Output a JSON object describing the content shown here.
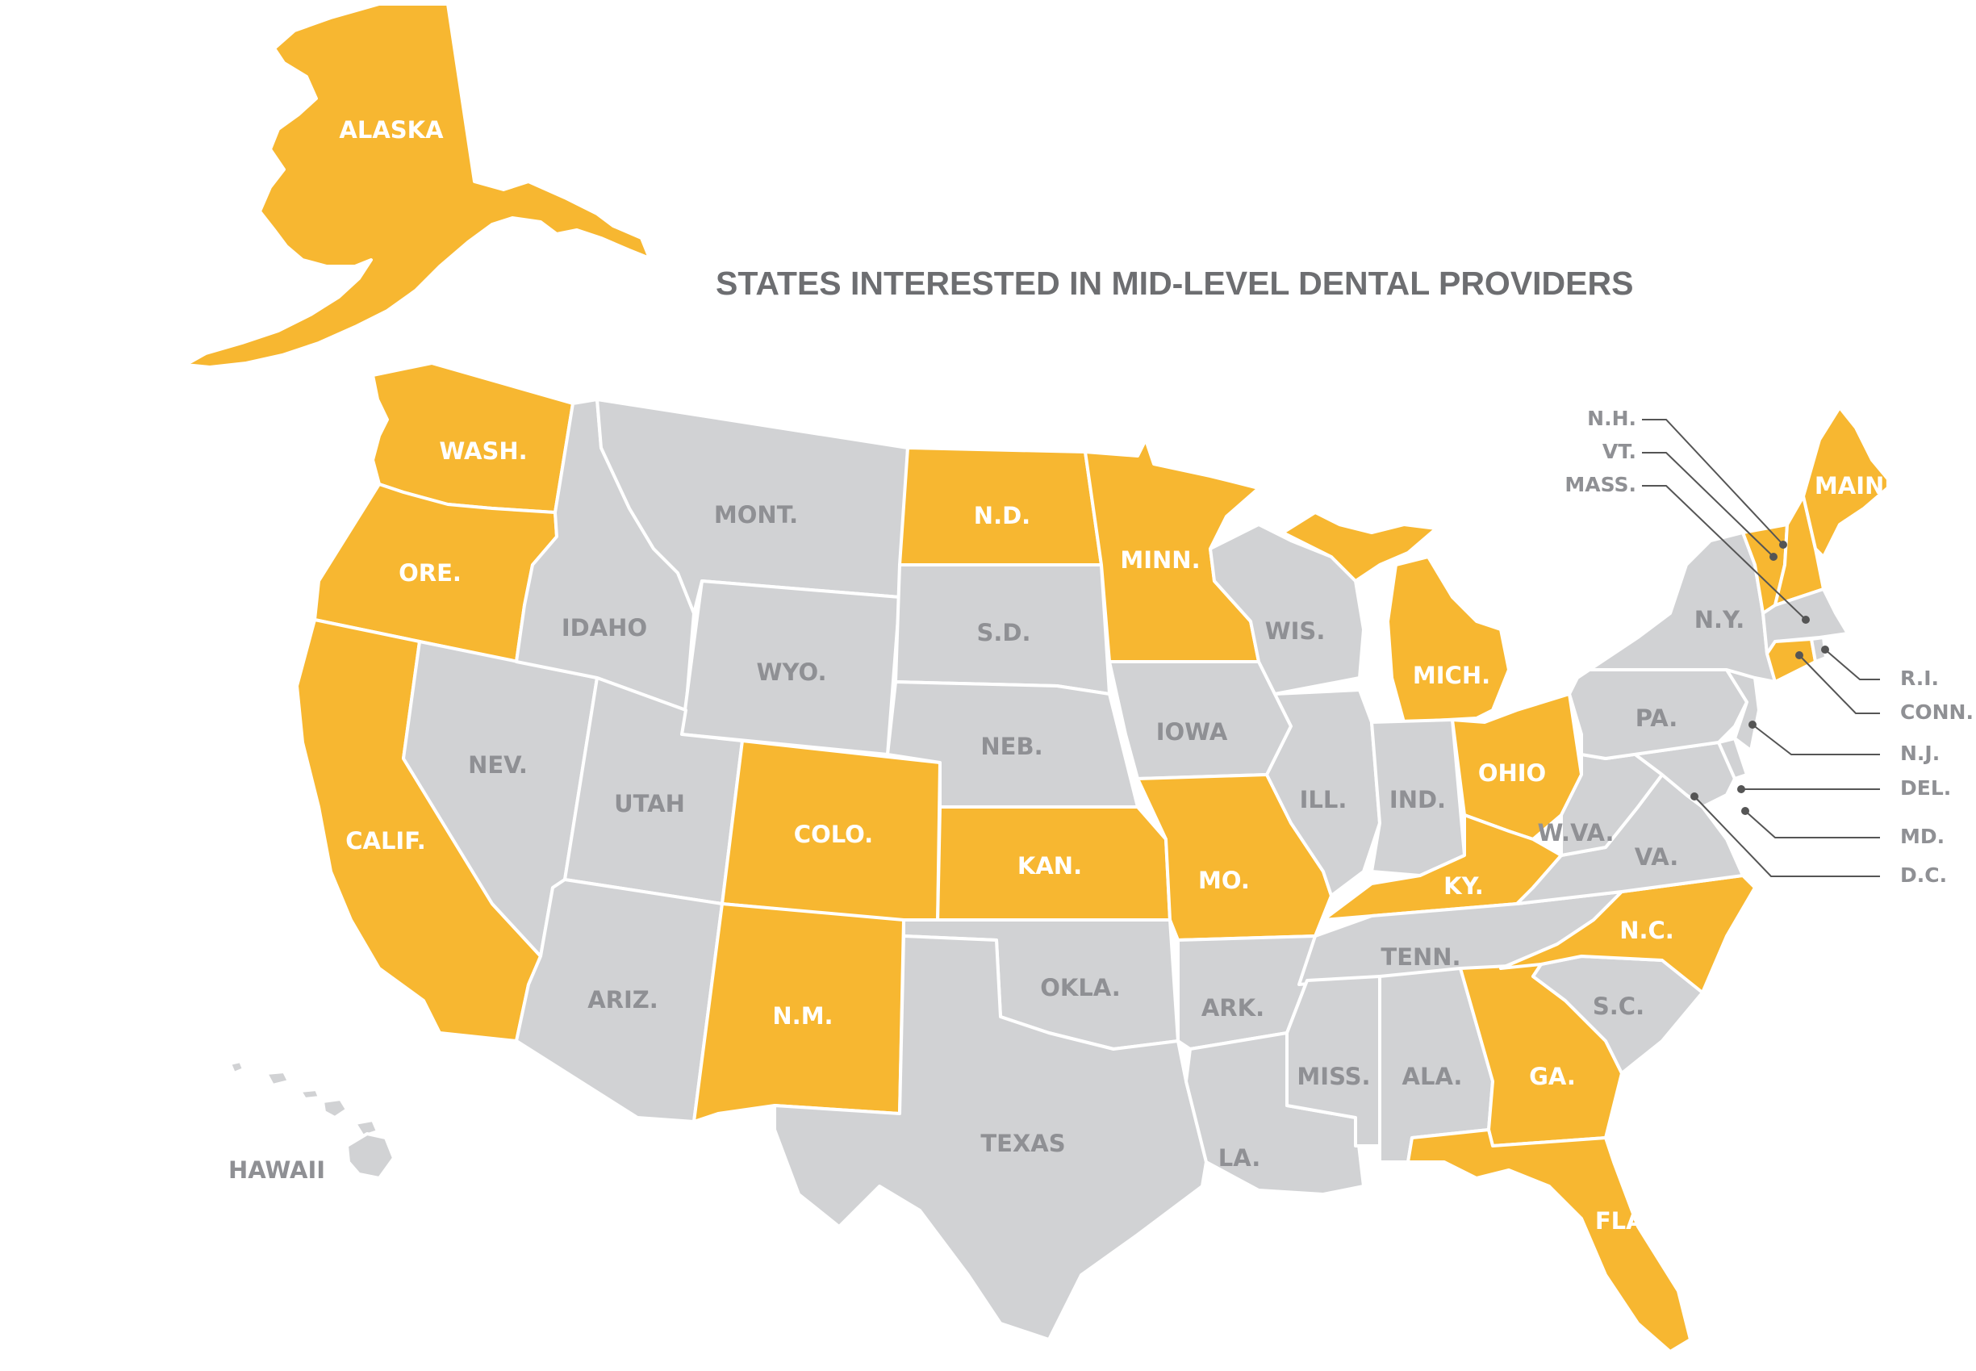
{
  "title": "STATES INTERESTED IN MID-LEVEL DENTAL PROVIDERS",
  "colors": {
    "interested": "#f7b731",
    "not_interested": "#d1d2d4",
    "label_on_interested": "#ffffff",
    "label_on_other": "#8f9094",
    "title": "#6d6e71"
  },
  "states": {
    "alaska": {
      "label": "ALASKA",
      "interested": true
    },
    "hawaii": {
      "label": "HAWAII",
      "interested": false
    },
    "wash": {
      "label": "WASH.",
      "interested": true
    },
    "ore": {
      "label": "ORE.",
      "interested": true
    },
    "calif": {
      "label": "CALIF.",
      "interested": true
    },
    "nev": {
      "label": "NEV.",
      "interested": false
    },
    "idaho": {
      "label": "IDAHO",
      "interested": false
    },
    "mont": {
      "label": "MONT.",
      "interested": false
    },
    "wyo": {
      "label": "WYO.",
      "interested": false
    },
    "utah": {
      "label": "UTAH",
      "interested": false
    },
    "ariz": {
      "label": "ARIZ.",
      "interested": false
    },
    "colo": {
      "label": "COLO.",
      "interested": true
    },
    "nm": {
      "label": "N.M.",
      "interested": true
    },
    "nd": {
      "label": "N.D.",
      "interested": true
    },
    "sd": {
      "label": "S.D.",
      "interested": false
    },
    "neb": {
      "label": "NEB.",
      "interested": false
    },
    "kan": {
      "label": "KAN.",
      "interested": true
    },
    "okla": {
      "label": "OKLA.",
      "interested": false
    },
    "texas": {
      "label": "TEXAS",
      "interested": false
    },
    "minn": {
      "label": "MINN.",
      "interested": true
    },
    "iowa": {
      "label": "IOWA",
      "interested": false
    },
    "mo": {
      "label": "MO.",
      "interested": true
    },
    "ark": {
      "label": "ARK.",
      "interested": false
    },
    "la": {
      "label": "LA.",
      "interested": false
    },
    "wis": {
      "label": "WIS.",
      "interested": false
    },
    "ill": {
      "label": "ILL.",
      "interested": false
    },
    "mich": {
      "label": "MICH.",
      "interested": true
    },
    "ind": {
      "label": "IND.",
      "interested": false
    },
    "ohio": {
      "label": "OHIO",
      "interested": true
    },
    "ky": {
      "label": "KY.",
      "interested": true
    },
    "tenn": {
      "label": "TENN.",
      "interested": false
    },
    "miss": {
      "label": "MISS.",
      "interested": false
    },
    "ala": {
      "label": "ALA.",
      "interested": false
    },
    "ga": {
      "label": "GA.",
      "interested": true
    },
    "fla": {
      "label": "FLA.",
      "interested": true
    },
    "sc": {
      "label": "S.C.",
      "interested": false
    },
    "nc": {
      "label": "N.C.",
      "interested": true
    },
    "va": {
      "label": "VA.",
      "interested": false
    },
    "wva": {
      "label": "W.VA.",
      "interested": false
    },
    "pa": {
      "label": "PA.",
      "interested": false
    },
    "ny": {
      "label": "N.Y.",
      "interested": false
    },
    "maine": {
      "label": "MAINE",
      "interested": true
    },
    "nh": {
      "label": "N.H.",
      "interested": true
    },
    "vt": {
      "label": "VT.",
      "interested": true
    },
    "mass": {
      "label": "MASS.",
      "interested": false
    },
    "ri": {
      "label": "R.I.",
      "interested": false
    },
    "conn": {
      "label": "CONN.",
      "interested": true
    },
    "nj": {
      "label": "N.J.",
      "interested": false
    },
    "del": {
      "label": "DEL.",
      "interested": false
    },
    "md": {
      "label": "MD.",
      "interested": false
    },
    "dc": {
      "label": "D.C.",
      "interested": false
    }
  }
}
